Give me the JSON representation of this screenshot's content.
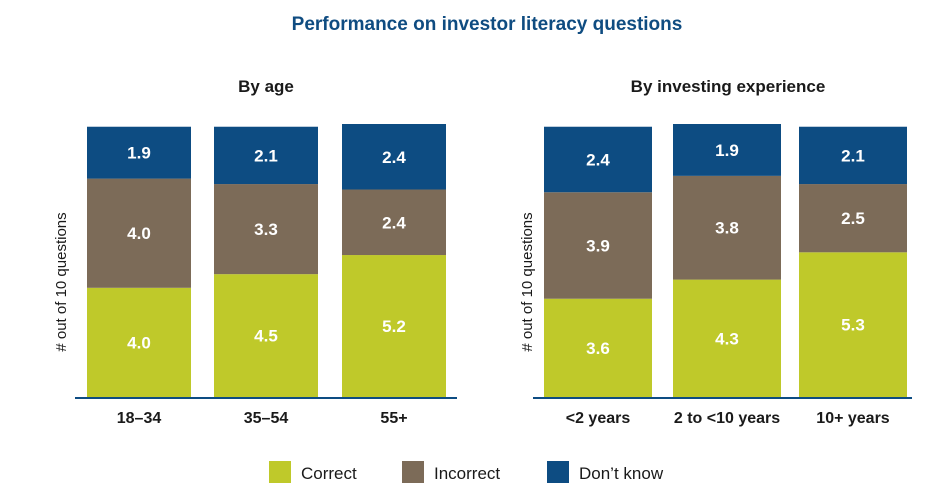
{
  "title": "Performance on investor literacy questions",
  "legend": [
    {
      "label": "Correct",
      "color": "#bfc92a"
    },
    {
      "label": "Incorrect",
      "color": "#7c6b58"
    },
    {
      "label": "Don’t know",
      "color": "#0d4c82"
    }
  ],
  "chart_data": [
    {
      "type": "bar",
      "stacked": true,
      "title": "By age",
      "ylabel": "# out of 10 questions",
      "xlabel": "",
      "ylim": [
        0,
        10
      ],
      "categories": [
        "18–34",
        "35–54",
        "55+"
      ],
      "series": [
        {
          "name": "Correct",
          "values": [
            4.0,
            4.5,
            5.2
          ]
        },
        {
          "name": "Incorrect",
          "values": [
            4.0,
            3.3,
            2.4
          ]
        },
        {
          "name": "Don’t know",
          "values": [
            1.9,
            2.1,
            2.4
          ]
        }
      ],
      "labels": [
        [
          "4.0",
          "4.5",
          "5.2"
        ],
        [
          "4.0",
          "3.3",
          "2.4"
        ],
        [
          "1.9",
          "2.1",
          "2.4"
        ]
      ]
    },
    {
      "type": "bar",
      "stacked": true,
      "title": "By investing experience",
      "ylabel": "# out of 10 questions",
      "xlabel": "",
      "ylim": [
        0,
        10
      ],
      "categories": [
        "<2 years",
        "2 to <10 years",
        "10+ years"
      ],
      "series": [
        {
          "name": "Correct",
          "values": [
            3.6,
            4.3,
            5.3
          ]
        },
        {
          "name": "Incorrect",
          "values": [
            3.9,
            3.8,
            2.5
          ]
        },
        {
          "name": "Don’t know",
          "values": [
            2.4,
            1.9,
            2.1
          ]
        }
      ],
      "labels": [
        [
          "3.6",
          "4.3",
          "5.3"
        ],
        [
          "3.9",
          "3.8",
          "2.5"
        ],
        [
          "2.4",
          "1.9",
          "2.1"
        ]
      ]
    }
  ]
}
